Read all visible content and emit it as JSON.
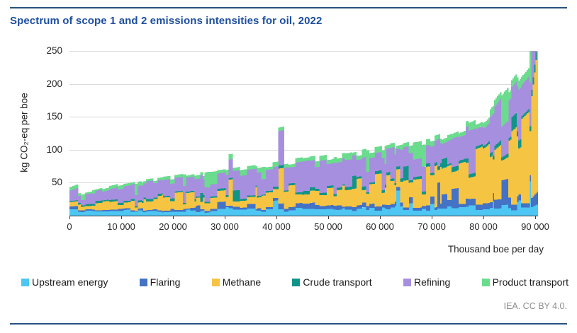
{
  "page": {
    "title": "Spectrum of scope 1 and 2 emissions intensities for oil, 2022",
    "credit": "IEA. CC BY 4.0."
  },
  "colors": {
    "title_navy": "#1d4e9e",
    "rule_navy": "#27517f",
    "gridline_gray": "#d9d9d9",
    "axis_text": "#262626",
    "credit_gray": "#8c8c8c"
  },
  "chart_data": {
    "type": "bar",
    "subtype": "stacked-intensity-spectrum",
    "title": "Spectrum of scope 1 and 2 emissions intensities for oil, 2022",
    "xlabel": "Thousand boe per day",
    "ylabel": "kg CO₂-eq per boe",
    "xlim": [
      0,
      90000
    ],
    "ylim": [
      0,
      250
    ],
    "x_ticks": [
      0,
      10000,
      20000,
      30000,
      40000,
      50000,
      60000,
      70000,
      80000,
      90000
    ],
    "x_tick_labels": [
      "0",
      "10 000",
      "20 000",
      "30 000",
      "40 000",
      "50 000",
      "60 000",
      "70 000",
      "80 000",
      "90 000"
    ],
    "y_ticks": [
      50,
      100,
      150,
      200,
      250
    ],
    "grid": "horizontal",
    "legend_position": "bottom",
    "description": "Supply curve of world oil production sorted by rising total scope 1 and 2 emissions intensity; each thin column is a stacked bar of six emission components. Totals rise from ~29 kg CO2-eq/boe for the cleanest barrels to ~250 kg for the most emissions-intensive tail, which is clipped at the top of the axis.",
    "sample_x": [
      0,
      10000,
      20000,
      30000,
      40000,
      50000,
      60000,
      70000,
      80000,
      90000
    ],
    "total_intensity": [
      29,
      48,
      58,
      68,
      78,
      90,
      102,
      116,
      150,
      250
    ],
    "series": [
      {
        "name": "Upstream energy",
        "color": "#4dc6f4",
        "fractions": [
          0.22,
          0.15,
          0.13,
          0.13,
          0.12,
          0.11,
          0.12,
          0.11,
          0.09,
          0.07
        ]
      },
      {
        "name": "Flaring",
        "color": "#4472c4",
        "fractions": [
          0.07,
          0.05,
          0.05,
          0.06,
          0.06,
          0.06,
          0.06,
          0.07,
          0.07,
          0.05
        ]
      },
      {
        "name": "Methane",
        "color": "#f6c443",
        "fractions": [
          0.2,
          0.25,
          0.25,
          0.25,
          0.26,
          0.27,
          0.3,
          0.33,
          0.4,
          0.47
        ]
      },
      {
        "name": "Crude transport",
        "color": "#119488",
        "fractions": [
          0.07,
          0.05,
          0.05,
          0.04,
          0.04,
          0.04,
          0.04,
          0.04,
          0.03,
          0.03
        ]
      },
      {
        "name": "Refining",
        "color": "#a78fdf",
        "fractions": [
          0.34,
          0.42,
          0.44,
          0.43,
          0.44,
          0.44,
          0.4,
          0.37,
          0.33,
          0.31
        ]
      },
      {
        "name": "Product transport",
        "color": "#6bdb8e",
        "fractions": [
          0.1,
          0.08,
          0.08,
          0.09,
          0.08,
          0.08,
          0.08,
          0.08,
          0.08,
          0.07
        ]
      }
    ],
    "columns": 330,
    "noise_seed": 20221
  }
}
